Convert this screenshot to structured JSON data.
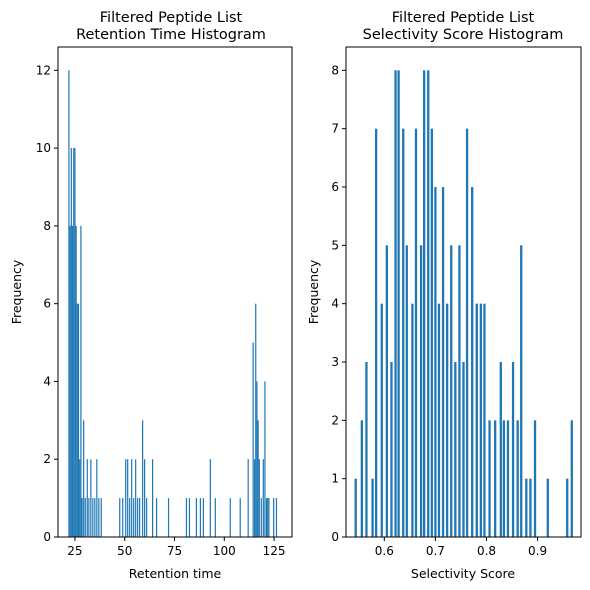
{
  "chart_data": [
    {
      "type": "bar",
      "title": "Filtered Peptide List\nRetention Time Histogram",
      "xlabel": "Retention time",
      "ylabel": "Frequency",
      "xlim": [
        16.5,
        134
      ],
      "ylim": [
        0,
        12.6
      ],
      "xticks": [
        25,
        50,
        75,
        100,
        125
      ],
      "yticks": [
        0,
        2,
        4,
        6,
        8,
        10,
        12
      ],
      "bar_color": "#1f77b4",
      "bar_width": 0.55,
      "bins": [
        {
          "x": 22.0,
          "y": 12
        },
        {
          "x": 22.6,
          "y": 8
        },
        {
          "x": 23.2,
          "y": 10
        },
        {
          "x": 23.8,
          "y": 8
        },
        {
          "x": 24.4,
          "y": 10
        },
        {
          "x": 25.0,
          "y": 10
        },
        {
          "x": 25.6,
          "y": 8
        },
        {
          "x": 26.2,
          "y": 6
        },
        {
          "x": 26.8,
          "y": 6
        },
        {
          "x": 27.4,
          "y": 2
        },
        {
          "x": 28.0,
          "y": 8
        },
        {
          "x": 28.6,
          "y": 1
        },
        {
          "x": 29.4,
          "y": 3
        },
        {
          "x": 30.2,
          "y": 1
        },
        {
          "x": 31.2,
          "y": 2
        },
        {
          "x": 32.0,
          "y": 1
        },
        {
          "x": 33.0,
          "y": 2
        },
        {
          "x": 34.0,
          "y": 1
        },
        {
          "x": 35.0,
          "y": 1
        },
        {
          "x": 36.0,
          "y": 2
        },
        {
          "x": 37.0,
          "y": 1
        },
        {
          "x": 38.2,
          "y": 1
        },
        {
          "x": 47.5,
          "y": 1
        },
        {
          "x": 49.0,
          "y": 1
        },
        {
          "x": 50.5,
          "y": 2
        },
        {
          "x": 51.5,
          "y": 2
        },
        {
          "x": 52.5,
          "y": 1
        },
        {
          "x": 53.5,
          "y": 2
        },
        {
          "x": 54.5,
          "y": 1
        },
        {
          "x": 55.5,
          "y": 2
        },
        {
          "x": 56.5,
          "y": 1
        },
        {
          "x": 57.5,
          "y": 1
        },
        {
          "x": 59.0,
          "y": 3
        },
        {
          "x": 60.0,
          "y": 2
        },
        {
          "x": 61.0,
          "y": 1
        },
        {
          "x": 64.0,
          "y": 2
        },
        {
          "x": 66.0,
          "y": 1
        },
        {
          "x": 72.0,
          "y": 1
        },
        {
          "x": 81.0,
          "y": 1
        },
        {
          "x": 82.5,
          "y": 1
        },
        {
          "x": 86.0,
          "y": 1
        },
        {
          "x": 88.0,
          "y": 1
        },
        {
          "x": 89.5,
          "y": 1
        },
        {
          "x": 93.0,
          "y": 2
        },
        {
          "x": 95.5,
          "y": 1
        },
        {
          "x": 103.0,
          "y": 1
        },
        {
          "x": 108.0,
          "y": 1
        },
        {
          "x": 112.0,
          "y": 2
        },
        {
          "x": 114.5,
          "y": 5
        },
        {
          "x": 115.2,
          "y": 2
        },
        {
          "x": 115.8,
          "y": 6
        },
        {
          "x": 116.4,
          "y": 4
        },
        {
          "x": 117.0,
          "y": 3
        },
        {
          "x": 117.6,
          "y": 2
        },
        {
          "x": 118.6,
          "y": 1
        },
        {
          "x": 119.6,
          "y": 2
        },
        {
          "x": 120.4,
          "y": 4
        },
        {
          "x": 121.2,
          "y": 1
        },
        {
          "x": 121.8,
          "y": 1
        },
        {
          "x": 122.4,
          "y": 1
        },
        {
          "x": 124.8,
          "y": 1
        },
        {
          "x": 126.2,
          "y": 1
        }
      ]
    },
    {
      "type": "bar",
      "title": "Filtered Peptide List\nSelectivity Score Histogram",
      "xlabel": "Selectivity Score",
      "ylabel": "Frequency",
      "xlim": [
        0.525,
        0.985
      ],
      "ylim": [
        0,
        8.4
      ],
      "xticks": [
        0.6,
        0.7,
        0.8,
        0.9
      ],
      "yticks": [
        0,
        1,
        2,
        3,
        4,
        5,
        6,
        7,
        8
      ],
      "bar_color": "#1f77b4",
      "bar_width": 0.0045,
      "bins": [
        {
          "x": 0.544,
          "y": 1
        },
        {
          "x": 0.556,
          "y": 2
        },
        {
          "x": 0.565,
          "y": 3
        },
        {
          "x": 0.577,
          "y": 1
        },
        {
          "x": 0.584,
          "y": 7
        },
        {
          "x": 0.595,
          "y": 4
        },
        {
          "x": 0.605,
          "y": 5
        },
        {
          "x": 0.614,
          "y": 3
        },
        {
          "x": 0.622,
          "y": 8
        },
        {
          "x": 0.628,
          "y": 8
        },
        {
          "x": 0.637,
          "y": 7
        },
        {
          "x": 0.644,
          "y": 5
        },
        {
          "x": 0.655,
          "y": 4
        },
        {
          "x": 0.662,
          "y": 7
        },
        {
          "x": 0.672,
          "y": 5
        },
        {
          "x": 0.678,
          "y": 8
        },
        {
          "x": 0.686,
          "y": 8
        },
        {
          "x": 0.693,
          "y": 7
        },
        {
          "x": 0.7,
          "y": 6
        },
        {
          "x": 0.707,
          "y": 4
        },
        {
          "x": 0.715,
          "y": 6
        },
        {
          "x": 0.723,
          "y": 4
        },
        {
          "x": 0.731,
          "y": 5
        },
        {
          "x": 0.739,
          "y": 3
        },
        {
          "x": 0.747,
          "y": 5
        },
        {
          "x": 0.755,
          "y": 3
        },
        {
          "x": 0.762,
          "y": 7
        },
        {
          "x": 0.772,
          "y": 6
        },
        {
          "x": 0.781,
          "y": 4
        },
        {
          "x": 0.789,
          "y": 4
        },
        {
          "x": 0.796,
          "y": 4
        },
        {
          "x": 0.806,
          "y": 2
        },
        {
          "x": 0.817,
          "y": 2
        },
        {
          "x": 0.828,
          "y": 3
        },
        {
          "x": 0.834,
          "y": 2
        },
        {
          "x": 0.842,
          "y": 2
        },
        {
          "x": 0.852,
          "y": 3
        },
        {
          "x": 0.861,
          "y": 2
        },
        {
          "x": 0.868,
          "y": 5
        },
        {
          "x": 0.878,
          "y": 1
        },
        {
          "x": 0.886,
          "y": 1
        },
        {
          "x": 0.895,
          "y": 2
        },
        {
          "x": 0.92,
          "y": 1
        },
        {
          "x": 0.958,
          "y": 1
        },
        {
          "x": 0.967,
          "y": 2
        }
      ]
    }
  ]
}
